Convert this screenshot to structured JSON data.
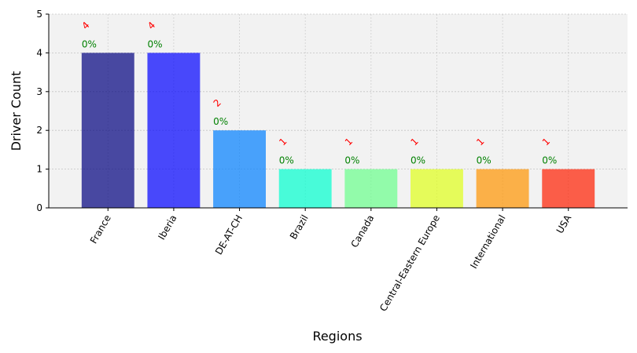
{
  "chart_data": {
    "type": "bar",
    "categories": [
      "France",
      "Iberia",
      "DE-AT-CH",
      "Brazil",
      "Canada",
      "Central-Eastern Europe",
      "International",
      "USA"
    ],
    "values": [
      4,
      4,
      2,
      1,
      1,
      1,
      1,
      1
    ],
    "count_labels": [
      "4",
      "4",
      "2",
      "1",
      "1",
      "1",
      "1",
      "1"
    ],
    "percent_labels": [
      "0%",
      "0%",
      "0%",
      "0%",
      "0%",
      "0%",
      "0%",
      "0%"
    ],
    "colors": [
      "#00007f",
      "#0000ff",
      "#007fff",
      "#00ffcf",
      "#6aff8b",
      "#dfff19",
      "#ff9400",
      "#ff1e00"
    ],
    "bar_opacity": 0.7,
    "title": "",
    "xlabel": "Regions",
    "ylabel": "Driver Count",
    "ylim": [
      0,
      5
    ],
    "yticks": [
      "0",
      "1",
      "2",
      "3",
      "4",
      "5"
    ],
    "grid": true,
    "legend": "none",
    "background": "#f2f2f2"
  }
}
